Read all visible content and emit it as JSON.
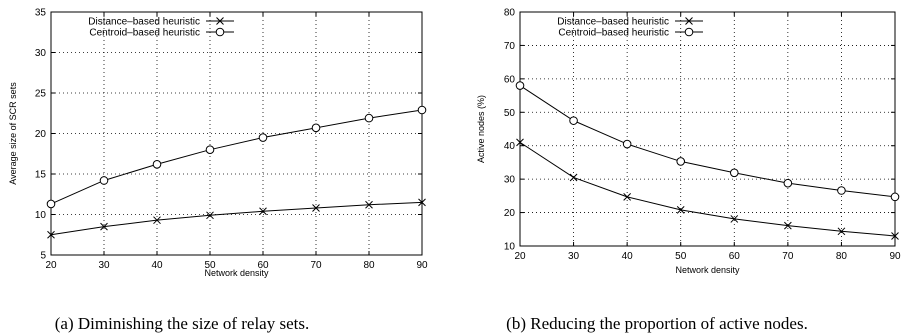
{
  "chart_data": [
    {
      "type": "line",
      "xlabel": "Network density",
      "ylabel": "Average size of SCR sets",
      "x": [
        20,
        30,
        40,
        50,
        60,
        70,
        80,
        90
      ],
      "xlim": [
        20,
        90
      ],
      "ylim": [
        5,
        35
      ],
      "xticks": [
        20,
        30,
        40,
        50,
        60,
        70,
        80,
        90
      ],
      "yticks": [
        5,
        10,
        15,
        20,
        25,
        30,
        35
      ],
      "grid": true,
      "legend_position": "top-left",
      "series": [
        {
          "name": "Distance–based heuristic",
          "marker": "x",
          "values": [
            7.5,
            8.5,
            9.3,
            9.9,
            10.4,
            10.8,
            11.2,
            11.5
          ]
        },
        {
          "name": "Centroid–based heuristic",
          "marker": "circle",
          "values": [
            11.3,
            14.2,
            16.2,
            18.0,
            19.5,
            20.7,
            21.9,
            22.9
          ]
        }
      ],
      "caption": "(a) Diminishing the size of relay sets."
    },
    {
      "type": "line",
      "xlabel": "Network density",
      "ylabel": "Active nodes (%)",
      "x": [
        20,
        30,
        40,
        50,
        60,
        70,
        80,
        90
      ],
      "xlim": [
        20,
        90
      ],
      "ylim": [
        10,
        80
      ],
      "xticks": [
        20,
        30,
        40,
        50,
        60,
        70,
        80,
        90
      ],
      "yticks": [
        10,
        20,
        30,
        40,
        50,
        60,
        70,
        80
      ],
      "grid": true,
      "legend_position": "top-left",
      "series": [
        {
          "name": "Distance–based heuristic",
          "marker": "x",
          "values": [
            41.0,
            30.5,
            24.7,
            20.8,
            18.1,
            16.1,
            14.4,
            13.0
          ]
        },
        {
          "name": "Centroid–based heuristic",
          "marker": "circle",
          "values": [
            58.0,
            47.5,
            40.5,
            35.3,
            31.9,
            28.8,
            26.6,
            24.7
          ]
        }
      ],
      "caption": "(b) Reducing the proportion of active nodes."
    }
  ]
}
